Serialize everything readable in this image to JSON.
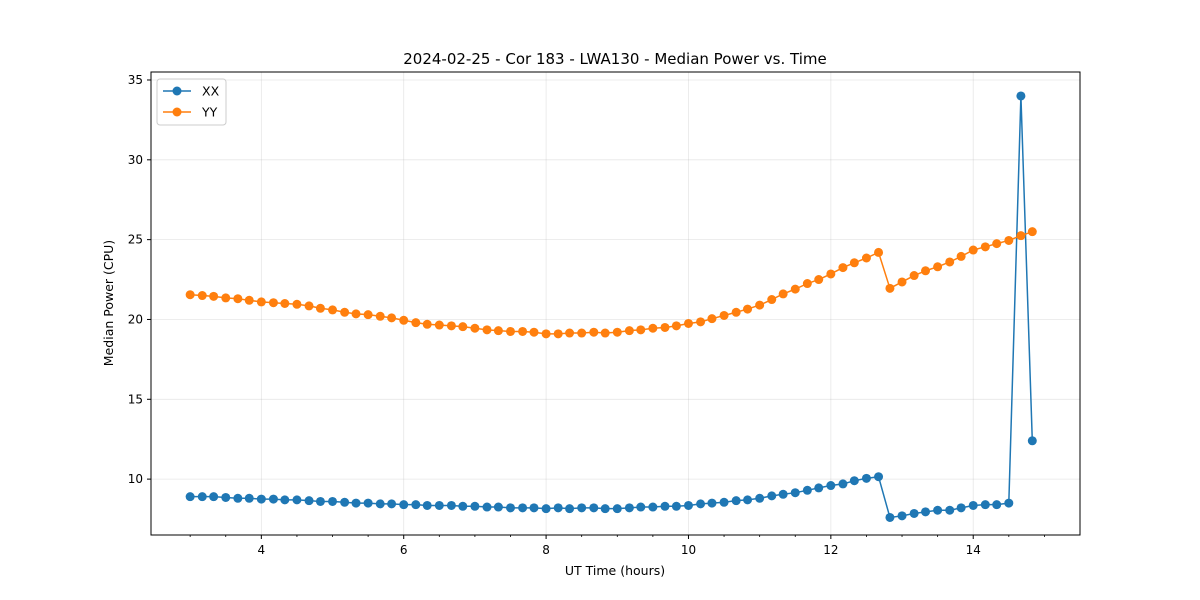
{
  "chart_data": {
    "type": "line",
    "title": "2024-02-25 - Cor 183 - LWA130 - Median Power vs. Time",
    "xlabel": "UT Time (hours)",
    "ylabel": "Median Power (CPU)",
    "xlim": [
      2.45,
      15.5
    ],
    "ylim": [
      6.5,
      35.5
    ],
    "xticks": [
      4,
      6,
      8,
      10,
      12,
      14
    ],
    "xtick_labels": [
      "4",
      "6",
      "8",
      "10",
      "12",
      "14"
    ],
    "yticks": [
      10,
      15,
      20,
      25,
      30,
      35
    ],
    "ytick_labels": [
      "10",
      "15",
      "20",
      "25",
      "30",
      "35"
    ],
    "grid": true,
    "legend_position": "top-left",
    "series": [
      {
        "name": "XX",
        "color": "#1f77b4",
        "x": [
          3.0,
          3.17,
          3.33,
          3.5,
          3.67,
          3.83,
          4.0,
          4.17,
          4.33,
          4.5,
          4.67,
          4.83,
          5.0,
          5.17,
          5.33,
          5.5,
          5.67,
          5.83,
          6.0,
          6.17,
          6.33,
          6.5,
          6.67,
          6.83,
          7.0,
          7.17,
          7.33,
          7.5,
          7.67,
          7.83,
          8.0,
          8.17,
          8.33,
          8.5,
          8.67,
          8.83,
          9.0,
          9.17,
          9.33,
          9.5,
          9.67,
          9.83,
          10.0,
          10.17,
          10.33,
          10.5,
          10.67,
          10.83,
          11.0,
          11.17,
          11.33,
          11.5,
          11.67,
          11.83,
          12.0,
          12.17,
          12.33,
          12.5,
          12.67,
          12.83,
          13.0,
          13.17,
          13.33,
          13.5,
          13.67,
          13.83,
          14.0,
          14.17,
          14.33,
          14.5,
          14.67,
          14.83
        ],
        "y": [
          8.9,
          8.9,
          8.9,
          8.85,
          8.8,
          8.8,
          8.75,
          8.75,
          8.7,
          8.7,
          8.65,
          8.6,
          8.6,
          8.55,
          8.5,
          8.5,
          8.45,
          8.45,
          8.4,
          8.4,
          8.35,
          8.35,
          8.35,
          8.3,
          8.3,
          8.25,
          8.25,
          8.2,
          8.2,
          8.2,
          8.15,
          8.2,
          8.15,
          8.2,
          8.2,
          8.15,
          8.15,
          8.2,
          8.25,
          8.25,
          8.3,
          8.3,
          8.35,
          8.45,
          8.5,
          8.55,
          8.65,
          8.7,
          8.8,
          8.95,
          9.05,
          9.15,
          9.3,
          9.45,
          9.6,
          9.7,
          9.9,
          10.05,
          10.15,
          7.6,
          7.7,
          7.85,
          7.95,
          8.05,
          8.05,
          8.2,
          8.35,
          8.4,
          8.4,
          8.5,
          34.0,
          12.4
        ]
      },
      {
        "name": "YY",
        "color": "#ff7f0e",
        "x": [
          3.0,
          3.17,
          3.33,
          3.5,
          3.67,
          3.83,
          4.0,
          4.17,
          4.33,
          4.5,
          4.67,
          4.83,
          5.0,
          5.17,
          5.33,
          5.5,
          5.67,
          5.83,
          6.0,
          6.17,
          6.33,
          6.5,
          6.67,
          6.83,
          7.0,
          7.17,
          7.33,
          7.5,
          7.67,
          7.83,
          8.0,
          8.17,
          8.33,
          8.5,
          8.67,
          8.83,
          9.0,
          9.17,
          9.33,
          9.5,
          9.67,
          9.83,
          10.0,
          10.17,
          10.33,
          10.5,
          10.67,
          10.83,
          11.0,
          11.17,
          11.33,
          11.5,
          11.67,
          11.83,
          12.0,
          12.17,
          12.33,
          12.5,
          12.67,
          12.83,
          13.0,
          13.17,
          13.33,
          13.5,
          13.67,
          13.83,
          14.0,
          14.17,
          14.33,
          14.5,
          14.67,
          14.83
        ],
        "y": [
          21.55,
          21.5,
          21.45,
          21.35,
          21.3,
          21.2,
          21.1,
          21.05,
          21.0,
          20.95,
          20.85,
          20.7,
          20.6,
          20.45,
          20.35,
          20.3,
          20.2,
          20.1,
          19.95,
          19.8,
          19.7,
          19.65,
          19.6,
          19.55,
          19.45,
          19.35,
          19.3,
          19.25,
          19.25,
          19.2,
          19.1,
          19.1,
          19.15,
          19.15,
          19.2,
          19.15,
          19.2,
          19.3,
          19.35,
          19.45,
          19.5,
          19.6,
          19.75,
          19.85,
          20.05,
          20.25,
          20.45,
          20.65,
          20.9,
          21.25,
          21.6,
          21.9,
          22.25,
          22.5,
          22.85,
          23.25,
          23.55,
          23.85,
          24.2,
          21.95,
          22.35,
          22.75,
          23.05,
          23.3,
          23.6,
          23.95,
          24.35,
          24.55,
          24.75,
          24.95,
          25.25,
          25.5
        ]
      }
    ]
  }
}
